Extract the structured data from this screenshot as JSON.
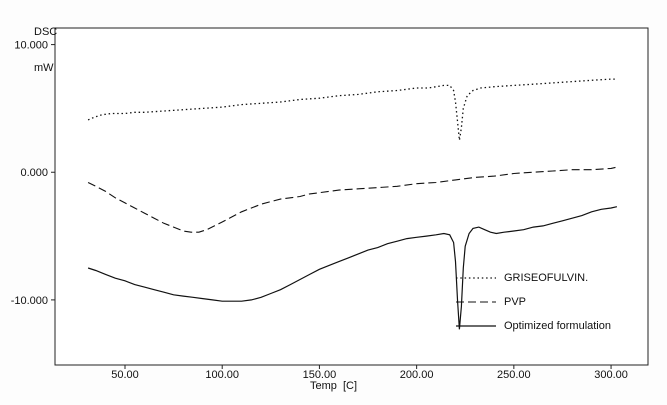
{
  "chart_data": {
    "type": "line",
    "title": "",
    "ylabel_line1": "DSC",
    "ylabel_line2": "mW",
    "xlabel": "Temp  [C]",
    "xlim": [
      14,
      319
    ],
    "ylim": [
      -15.1,
      11.3
    ],
    "grid": false,
    "legend_position": "bottom-right-inside",
    "x_ticks": [
      {
        "value": 50,
        "label": "50.00"
      },
      {
        "value": 100,
        "label": "100.00"
      },
      {
        "value": 150,
        "label": "150.00"
      },
      {
        "value": 200,
        "label": "200.00"
      },
      {
        "value": 250,
        "label": "250.00"
      },
      {
        "value": 300,
        "label": "300.00"
      }
    ],
    "y_ticks": [
      {
        "value": 10,
        "label": "10.000"
      },
      {
        "value": 0,
        "label": "0.000"
      },
      {
        "value": -10,
        "label": "-10.000"
      }
    ],
    "series": [
      {
        "name": "GRISEOFULVIN.",
        "style": "dotted",
        "points": [
          [
            31,
            4.1
          ],
          [
            34,
            4.3
          ],
          [
            38,
            4.5
          ],
          [
            43,
            4.6
          ],
          [
            50,
            4.6
          ],
          [
            55,
            4.7
          ],
          [
            60,
            4.7
          ],
          [
            70,
            4.8
          ],
          [
            80,
            4.9
          ],
          [
            90,
            5.0
          ],
          [
            100,
            5.1
          ],
          [
            110,
            5.3
          ],
          [
            120,
            5.4
          ],
          [
            130,
            5.5
          ],
          [
            140,
            5.7
          ],
          [
            150,
            5.8
          ],
          [
            160,
            6.0
          ],
          [
            170,
            6.1
          ],
          [
            180,
            6.3
          ],
          [
            190,
            6.4
          ],
          [
            200,
            6.6
          ],
          [
            206,
            6.6
          ],
          [
            210,
            6.7
          ],
          [
            214,
            6.8
          ],
          [
            217,
            6.8
          ],
          [
            219,
            6.4
          ],
          [
            220,
            5.5
          ],
          [
            221,
            4.0
          ],
          [
            222,
            2.5
          ],
          [
            223,
            3.5
          ],
          [
            224,
            5.0
          ],
          [
            226,
            6.0
          ],
          [
            229,
            6.4
          ],
          [
            233,
            6.6
          ],
          [
            240,
            6.7
          ],
          [
            250,
            6.8
          ],
          [
            260,
            6.9
          ],
          [
            270,
            7.0
          ],
          [
            280,
            7.1
          ],
          [
            290,
            7.2
          ],
          [
            300,
            7.3
          ],
          [
            303,
            7.3
          ]
        ]
      },
      {
        "name": "PVP",
        "style": "dashed",
        "points": [
          [
            31,
            -0.8
          ],
          [
            35,
            -1.1
          ],
          [
            40,
            -1.5
          ],
          [
            45,
            -2.0
          ],
          [
            50,
            -2.4
          ],
          [
            55,
            -2.8
          ],
          [
            60,
            -3.2
          ],
          [
            65,
            -3.6
          ],
          [
            70,
            -4.0
          ],
          [
            75,
            -4.3
          ],
          [
            80,
            -4.6
          ],
          [
            84,
            -4.7
          ],
          [
            88,
            -4.7
          ],
          [
            92,
            -4.5
          ],
          [
            96,
            -4.2
          ],
          [
            100,
            -3.9
          ],
          [
            105,
            -3.5
          ],
          [
            110,
            -3.1
          ],
          [
            115,
            -2.8
          ],
          [
            120,
            -2.5
          ],
          [
            125,
            -2.3
          ],
          [
            130,
            -2.1
          ],
          [
            135,
            -2.0
          ],
          [
            140,
            -1.9
          ],
          [
            145,
            -1.7
          ],
          [
            150,
            -1.6
          ],
          [
            160,
            -1.4
          ],
          [
            170,
            -1.3
          ],
          [
            180,
            -1.2
          ],
          [
            190,
            -1.1
          ],
          [
            200,
            -0.9
          ],
          [
            210,
            -0.8
          ],
          [
            220,
            -0.6
          ],
          [
            230,
            -0.4
          ],
          [
            240,
            -0.3
          ],
          [
            250,
            -0.1
          ],
          [
            260,
            0.0
          ],
          [
            270,
            0.1
          ],
          [
            280,
            0.2
          ],
          [
            290,
            0.2
          ],
          [
            300,
            0.3
          ],
          [
            303,
            0.4
          ]
        ]
      },
      {
        "name": "Optimized formulation",
        "style": "solid",
        "points": [
          [
            31,
            -7.5
          ],
          [
            35,
            -7.7
          ],
          [
            40,
            -8.0
          ],
          [
            45,
            -8.3
          ],
          [
            50,
            -8.5
          ],
          [
            55,
            -8.8
          ],
          [
            60,
            -9.0
          ],
          [
            65,
            -9.2
          ],
          [
            70,
            -9.4
          ],
          [
            75,
            -9.6
          ],
          [
            80,
            -9.7
          ],
          [
            85,
            -9.8
          ],
          [
            90,
            -9.9
          ],
          [
            95,
            -10.0
          ],
          [
            100,
            -10.1
          ],
          [
            105,
            -10.1
          ],
          [
            110,
            -10.1
          ],
          [
            115,
            -10.0
          ],
          [
            120,
            -9.8
          ],
          [
            125,
            -9.5
          ],
          [
            130,
            -9.2
          ],
          [
            135,
            -8.8
          ],
          [
            140,
            -8.4
          ],
          [
            145,
            -8.0
          ],
          [
            150,
            -7.6
          ],
          [
            155,
            -7.3
          ],
          [
            160,
            -7.0
          ],
          [
            165,
            -6.7
          ],
          [
            170,
            -6.4
          ],
          [
            175,
            -6.1
          ],
          [
            180,
            -5.9
          ],
          [
            185,
            -5.6
          ],
          [
            190,
            -5.4
          ],
          [
            195,
            -5.2
          ],
          [
            200,
            -5.1
          ],
          [
            205,
            -5.0
          ],
          [
            210,
            -4.9
          ],
          [
            214,
            -4.8
          ],
          [
            217,
            -4.9
          ],
          [
            219,
            -5.5
          ],
          [
            220,
            -7.0
          ],
          [
            221,
            -10.0
          ],
          [
            222,
            -12.3
          ],
          [
            223,
            -10.5
          ],
          [
            224,
            -7.5
          ],
          [
            225,
            -5.8
          ],
          [
            227,
            -4.8
          ],
          [
            229,
            -4.4
          ],
          [
            232,
            -4.3
          ],
          [
            235,
            -4.5
          ],
          [
            238,
            -4.7
          ],
          [
            241,
            -4.8
          ],
          [
            245,
            -4.7
          ],
          [
            250,
            -4.6
          ],
          [
            255,
            -4.5
          ],
          [
            260,
            -4.3
          ],
          [
            265,
            -4.2
          ],
          [
            270,
            -4.0
          ],
          [
            275,
            -3.8
          ],
          [
            280,
            -3.6
          ],
          [
            285,
            -3.4
          ],
          [
            290,
            -3.1
          ],
          [
            295,
            -2.9
          ],
          [
            300,
            -2.8
          ],
          [
            303,
            -2.7
          ]
        ]
      }
    ]
  }
}
